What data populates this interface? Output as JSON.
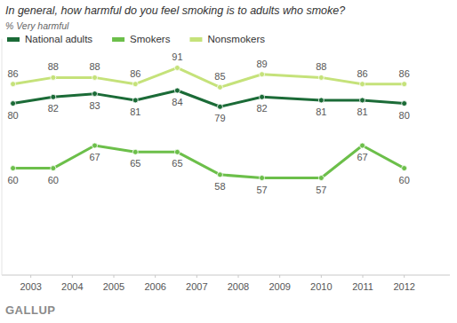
{
  "chart_data": {
    "type": "line",
    "title": "In general, how harmful do you feel smoking is to adults who smoke?",
    "subtitle": "% Very harmful",
    "source": "GALLUP",
    "x": [
      2002.57,
      2003.54,
      2004.54,
      2005.52,
      2006.53,
      2007.56,
      2008.57,
      2010.0,
      2010.99,
      2012.0
    ],
    "series": [
      {
        "name": "National adults",
        "color": "#1b6b37",
        "values": [
          80,
          82,
          83,
          81,
          84,
          79,
          82,
          81,
          81,
          80
        ]
      },
      {
        "name": "Smokers",
        "color": "#6cbf4a",
        "values": [
          60,
          60,
          67,
          65,
          65,
          58,
          57,
          57,
          67,
          60
        ]
      },
      {
        "name": "Nonsmokers",
        "color": "#c5e27a",
        "values": [
          86,
          88,
          88,
          86,
          91,
          85,
          89,
          88,
          86,
          86
        ]
      }
    ],
    "xlim": [
      2002.3,
      2013.1
    ],
    "xticks": [
      2003,
      2004,
      2005,
      2006,
      2007,
      2008,
      2009,
      2010,
      2011,
      2012
    ],
    "ylim": [
      27,
      100
    ],
    "tick_labels": "x",
    "grid": false,
    "legend": "top-left",
    "data_labels": true,
    "marker": "circle"
  }
}
